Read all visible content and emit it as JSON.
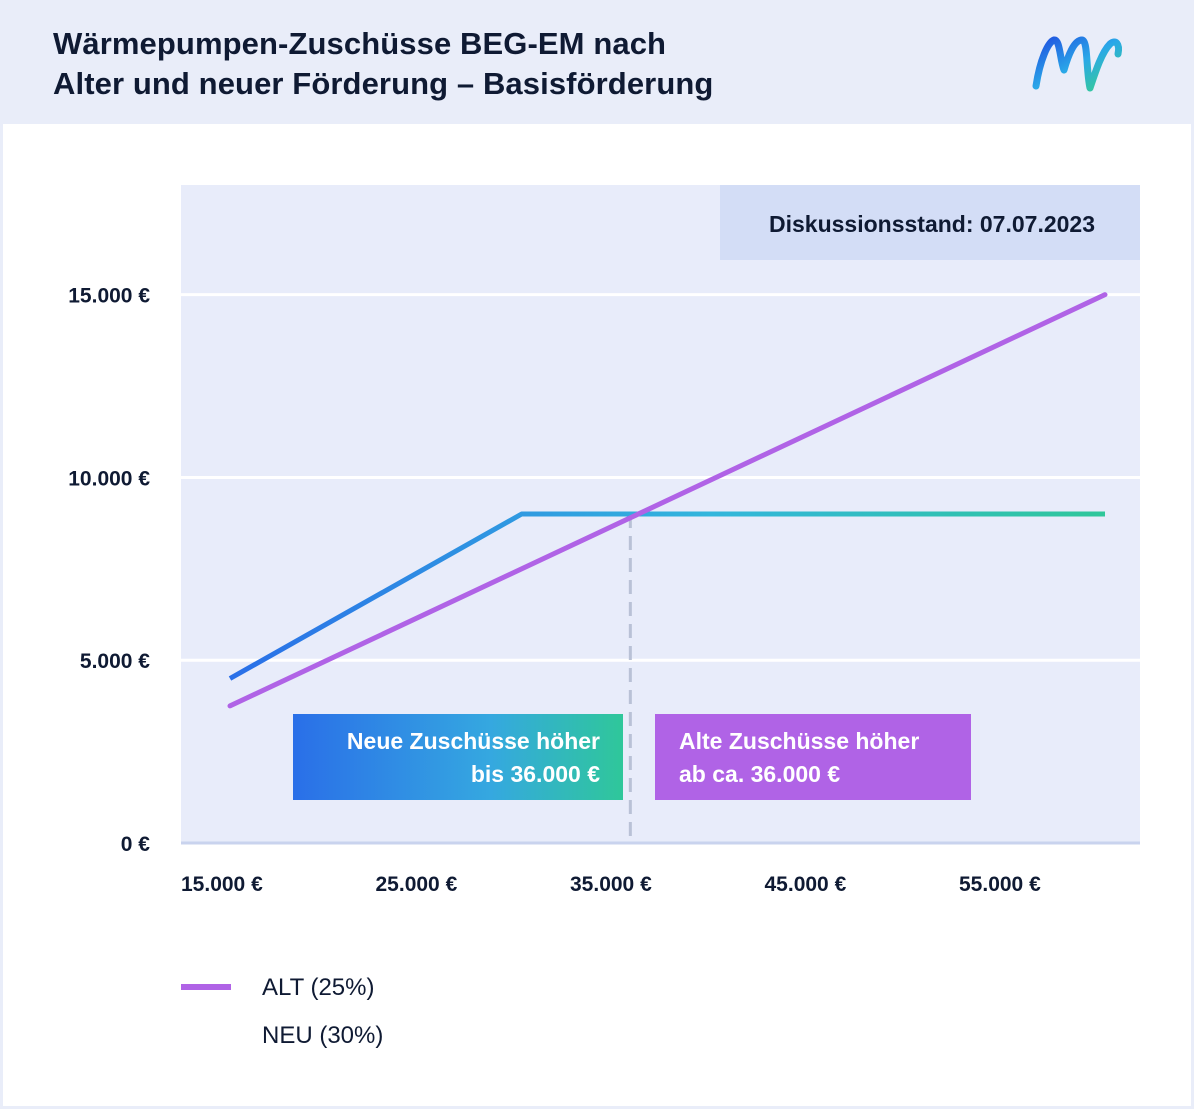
{
  "header": {
    "title_line1": "Wärmepumpen-Zuschüsse BEG-EM nach",
    "title_line2": "Alter und neuer Förderung – Basisförderung",
    "logo_icon": "mw-logo-icon"
  },
  "colors": {
    "alt": "#b063e6",
    "neu_start": "#2a6fe8",
    "neu_end": "#2fc79a",
    "plot_bg": "#e8ecfa",
    "stand_bg": "#d3ddf6"
  },
  "chart_data": {
    "type": "line",
    "title": "Wärmepumpen-Zuschüsse BEG-EM nach Alter und neuer Förderung – Basisförderung",
    "xlabel": "",
    "ylabel": "",
    "xlim": [
      15000,
      60000
    ],
    "ylim": [
      0,
      18000
    ],
    "x_ticks": [
      {
        "value": 15000,
        "label": "15.000 €"
      },
      {
        "value": 25000,
        "label": "25.000 €"
      },
      {
        "value": 35000,
        "label": "35.000 €"
      },
      {
        "value": 45000,
        "label": "45.000 €"
      },
      {
        "value": 55000,
        "label": "55.000 €"
      }
    ],
    "y_ticks": [
      {
        "value": 0,
        "label": "0 €"
      },
      {
        "value": 5000,
        "label": "5.000 €"
      },
      {
        "value": 10000,
        "label": "10.000 €"
      },
      {
        "value": 15000,
        "label": "15.000 €"
      }
    ],
    "grid": true,
    "legend_position": "bottom-left",
    "series": [
      {
        "name": "ALT (25%)",
        "color": "#b063e6",
        "x": [
          15000,
          60000
        ],
        "y": [
          3750,
          15000
        ]
      },
      {
        "name": "NEU (30%)",
        "gradient": [
          "#2a6fe8",
          "#2fc79a"
        ],
        "x": [
          15000,
          30000,
          60000
        ],
        "y": [
          4500,
          9000,
          9000
        ]
      }
    ],
    "crossover": {
      "x": 36000,
      "y": 9000
    },
    "annotations": [
      {
        "lines": [
          "Neue Zuschüsse höher",
          "bis 36.000 €"
        ],
        "style": "gradient",
        "align": "right"
      },
      {
        "lines": [
          "Alte Zuschüsse höher",
          "ab ca. 36.000 €"
        ],
        "style": "alt",
        "align": "left"
      }
    ],
    "stand_label": "Diskussionsstand: 07.07.2023"
  }
}
